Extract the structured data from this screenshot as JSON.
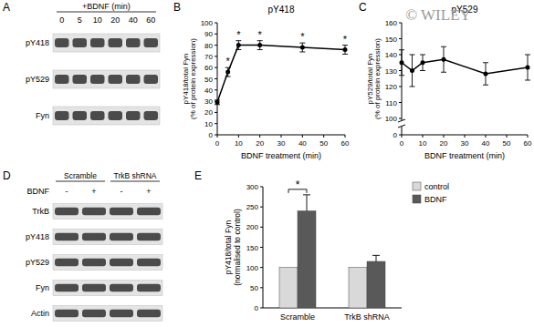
{
  "chart_data": [
    {
      "panel": "B",
      "type": "line",
      "title": "pY418",
      "xlabel": "BDNF treatment (min)",
      "ylabel": "pY418/total Fyn\n(% of protein expression)",
      "x": [
        0,
        5,
        10,
        20,
        40,
        60
      ],
      "values": [
        29,
        56,
        80,
        80,
        78,
        76
      ],
      "errors": [
        2,
        4,
        4,
        4,
        4,
        4
      ],
      "xlim": [
        0,
        60
      ],
      "xticks": [
        0,
        10,
        20,
        30,
        40,
        50,
        60
      ],
      "ylim": [
        0,
        100
      ],
      "yticks": [
        0,
        10,
        20,
        30,
        40,
        50,
        60,
        70,
        80,
        90,
        100
      ],
      "marker": "circle",
      "color": "#000000",
      "annotations": [
        {
          "x": 5,
          "text": "*"
        },
        {
          "x": 10,
          "text": "*"
        },
        {
          "x": 20,
          "text": "*"
        },
        {
          "x": 40,
          "text": "*"
        },
        {
          "x": 60,
          "text": "*"
        }
      ]
    },
    {
      "panel": "C",
      "type": "line",
      "title": "pY529",
      "xlabel": "BDNF treatment (min)",
      "ylabel": "pY529/total Fyn\n(% of protein expression)",
      "x": [
        0,
        5,
        10,
        20,
        40,
        60
      ],
      "values": [
        135,
        130,
        135,
        137,
        128,
        132
      ],
      "errors": [
        8,
        10,
        5,
        8,
        7,
        8
      ],
      "xlim": [
        0,
        60
      ],
      "xticks": [
        0,
        10,
        20,
        30,
        40,
        50,
        60
      ],
      "ylim": [
        0,
        160
      ],
      "ybreak": [
        0,
        100
      ],
      "yticks": [
        0,
        100,
        110,
        120,
        130,
        140,
        150,
        160
      ],
      "marker": "circle",
      "color": "#000000"
    },
    {
      "panel": "E",
      "type": "bar",
      "ylabel": "pY418/total Fyn\n(normalised to control)",
      "categories": [
        "Scramble",
        "TrkB shRNA"
      ],
      "series": [
        {
          "name": "control",
          "color": "#d9d9d9",
          "values": [
            100,
            100
          ],
          "errors": [
            0,
            0
          ]
        },
        {
          "name": "BDNF",
          "color": "#595959",
          "values": [
            240,
            115
          ],
          "errors": [
            40,
            15
          ]
        }
      ],
      "ylim": [
        0,
        300
      ],
      "yticks": [
        0,
        50,
        100,
        150,
        200,
        250,
        300
      ],
      "legend": "right",
      "annotations": [
        {
          "category": "Scramble",
          "text": "*"
        }
      ]
    }
  ],
  "blots": [
    {
      "panel": "A",
      "header": "+BDNF (min)",
      "lanes": [
        "0",
        "5",
        "10",
        "20",
        "40",
        "60"
      ],
      "rows": [
        "pY418",
        "pY529",
        "Fyn"
      ]
    },
    {
      "panel": "D",
      "groups": [
        "Scramble",
        "TrkB shRNA"
      ],
      "condition_label": "BDNF",
      "lanes": [
        "-",
        "+",
        "-",
        "+"
      ],
      "rows": [
        "TrkB",
        "pY418",
        "pY529",
        "Fyn",
        "Actin"
      ]
    }
  ],
  "watermark": "© WILEY"
}
